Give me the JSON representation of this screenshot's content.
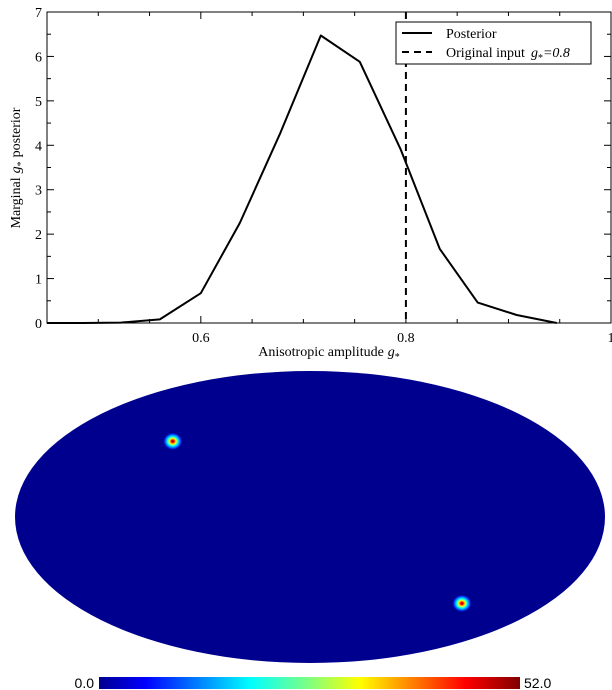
{
  "chart_data": [
    {
      "type": "line",
      "xlabel": "Anisotropic amplitude",
      "xlabel_symbol": "g",
      "xlabel_subscript": "*",
      "ylabel_prefix": "Marginal",
      "ylabel_symbol": "g",
      "ylabel_subscript": "*",
      "ylabel_suffix": "posterior",
      "xlim": [
        0.45,
        1.0
      ],
      "ylim": [
        0,
        7
      ],
      "x_ticks": [
        {
          "value": 0.6,
          "label": "0.6"
        },
        {
          "value": 0.8,
          "label": "0.8"
        },
        {
          "value": 1.0,
          "label": "1"
        }
      ],
      "y_ticks": [
        {
          "value": 0,
          "label": "0"
        },
        {
          "value": 1,
          "label": "1"
        },
        {
          "value": 2,
          "label": "2"
        },
        {
          "value": 3,
          "label": "3"
        },
        {
          "value": 4,
          "label": "4"
        },
        {
          "value": 5,
          "label": "5"
        },
        {
          "value": 6,
          "label": "6"
        },
        {
          "value": 7,
          "label": "7"
        }
      ],
      "legend_placement": "top-right",
      "series": [
        {
          "name": "Posterior",
          "style": "solid",
          "x": [
            0.45,
            0.485,
            0.522,
            0.56,
            0.6,
            0.638,
            0.677,
            0.717,
            0.755,
            0.795,
            0.833,
            0.87,
            0.908,
            0.947
          ],
          "y": [
            0.0,
            0.0,
            0.01,
            0.08,
            0.67,
            2.25,
            4.25,
            6.47,
            5.88,
            3.9,
            1.67,
            0.46,
            0.18,
            0.0
          ]
        },
        {
          "name": "Original input",
          "name_symbol": "g",
          "name_subscript": "*",
          "name_suffix": "=0.8",
          "style": "dashed",
          "vline_x": 0.8
        }
      ]
    },
    {
      "type": "heatmap",
      "projection": "mollweide",
      "colormap": "jet",
      "background_value": 0.0,
      "colorbar_min": "0.0",
      "colorbar_max": "52.0",
      "hotspots": [
        {
          "lon_deg": 98,
          "lat_deg": 39,
          "peak": 52.0
        },
        {
          "lon_deg": -115,
          "lat_deg": -45,
          "peak": 52.0
        }
      ]
    }
  ]
}
